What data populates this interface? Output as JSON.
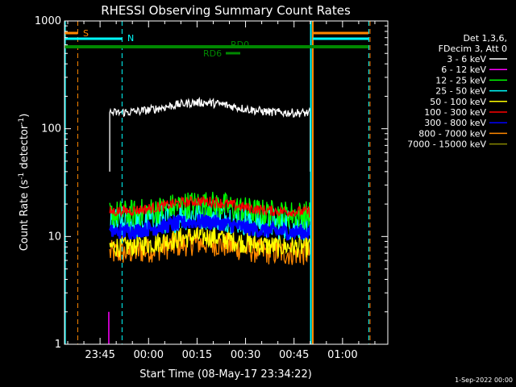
{
  "chart_data": {
    "type": "line",
    "title": "RHESSI Observing Summary Count Rates",
    "xlabel": "Start Time (08-May-17 23:34:22)",
    "ylabel_main": "Count Rate (s",
    "ylabel_sup1": "-1",
    "ylabel_mid": " detector",
    "ylabel_sup2": "-1",
    "ylabel_end": ")",
    "yscale": "log",
    "ylim": [
      1,
      1000
    ],
    "xlim_minutes_since_2334": [
      0,
      100
    ],
    "y_ticks": [
      {
        "value": 1,
        "label": "1"
      },
      {
        "value": 10,
        "label": "10"
      },
      {
        "value": 100,
        "label": "100"
      },
      {
        "value": 1000,
        "label": "1000"
      }
    ],
    "x_ticks": [
      {
        "value": 11,
        "label": "23:45"
      },
      {
        "value": 26,
        "label": "00:00"
      },
      {
        "value": 41,
        "label": "00:15"
      },
      {
        "value": 56,
        "label": "00:30"
      },
      {
        "value": 71,
        "label": "00:45"
      },
      {
        "value": 86,
        "label": "01:00"
      }
    ],
    "legend_header": [
      "Det 1,3,6,",
      "FDecim 3, Att 0"
    ],
    "series": [
      {
        "name": "3 - 6 keV",
        "color": "#ffffff",
        "level": 140,
        "noise": 0.04
      },
      {
        "name": "6 - 12 keV",
        "color": "#ff00ff",
        "level": null,
        "noise": 0
      },
      {
        "name": "12 - 25 keV",
        "color": "#00ff00",
        "level": 16,
        "noise": 0.13
      },
      {
        "name": "25 - 50 keV",
        "color": "#00ffff",
        "level": 13,
        "noise": 0.15
      },
      {
        "name": "50 - 100 keV",
        "color": "#ffff00",
        "level": 8,
        "noise": 0.1
      },
      {
        "name": "100 - 300 keV",
        "color": "#ff0000",
        "level": 17,
        "noise": 0.05
      },
      {
        "name": "300 - 800 keV",
        "color": "#0000ff",
        "level": 11,
        "noise": 0.07
      },
      {
        "name": "800 - 7000 keV",
        "color": "#ff8800",
        "level": 7,
        "noise": 0.12
      },
      {
        "name": "7000 - 15000 keV",
        "color": "#888800",
        "level": null,
        "noise": 0
      }
    ],
    "data_time_range": [
      14,
      76
    ],
    "annotations": {
      "saa_label": "S",
      "night_label": "N",
      "rd0_label": "RD0",
      "rd6_label": "RD6",
      "saa_dashed_lines": [
        4.1,
        94.5
      ],
      "night_dashed_lines": [
        17.8,
        94.1
      ],
      "solid_vertical_orange": 76.8,
      "solid_vertical_cyan": [
        0.15,
        76.2
      ]
    },
    "footer_date": "1-Sep-2022 00:00",
    "grid": false
  }
}
